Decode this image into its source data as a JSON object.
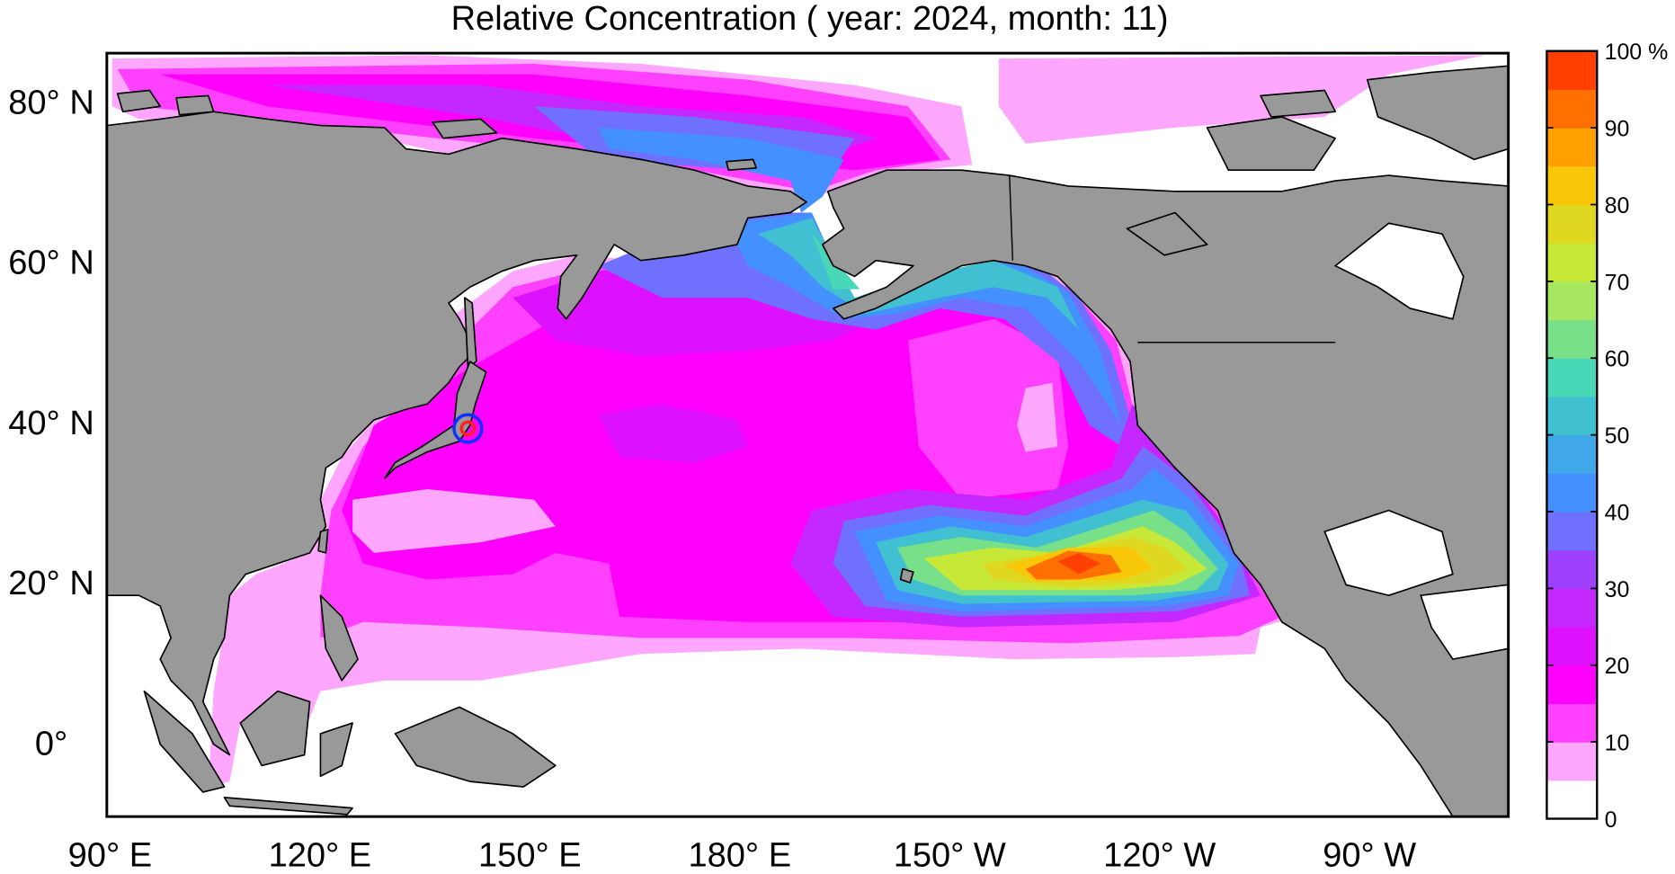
{
  "chart_data": {
    "type": "heatmap",
    "title": "Relative Concentration ( year: 2024, month: 11)",
    "projection": "map",
    "lat_ticks": [
      {
        "value": 80,
        "label": "80° N"
      },
      {
        "value": 60,
        "label": "60° N"
      },
      {
        "value": 40,
        "label": "40° N"
      },
      {
        "value": 20,
        "label": "20° N"
      },
      {
        "value": 0,
        "label": "0°"
      }
    ],
    "lon_ticks": [
      {
        "value": 90,
        "label": "90° E"
      },
      {
        "value": 120,
        "label": "120° E"
      },
      {
        "value": 150,
        "label": "150° E"
      },
      {
        "value": 180,
        "label": "180° E"
      },
      {
        "value": 210,
        "label": "150° W"
      },
      {
        "value": 240,
        "label": "120° W"
      },
      {
        "value": 270,
        "label": "90° W"
      }
    ],
    "lat_range": [
      -9,
      86
    ],
    "lon_range": [
      88,
      290
    ],
    "land_color": "#999999",
    "source_marker": {
      "lat": 37.4,
      "lon": 141.0,
      "outer_color": "#1030ff",
      "inner_color": "#ff2020"
    },
    "peak_region": {
      "lat": 22,
      "lon": 225,
      "value_range": "95-100 %"
    },
    "colorbar": {
      "unit": "%",
      "min": 0,
      "max": 100,
      "step": 5,
      "tick_labels": [
        "0",
        "10",
        "20",
        "30",
        "40",
        "50",
        "60",
        "70",
        "80",
        "90",
        "100 %"
      ],
      "colors": [
        "#ffffff",
        "#ffa6ff",
        "#ff40ff",
        "#ff00ff",
        "#dd10ff",
        "#c428ff",
        "#a040ff",
        "#7070ff",
        "#4490ff",
        "#40a8e8",
        "#40c0d0",
        "#48d8b8",
        "#78e088",
        "#a8e860",
        "#c8e838",
        "#e0d820",
        "#f8c808",
        "#ffa000",
        "#ff7000",
        "#ff4000"
      ]
    }
  }
}
